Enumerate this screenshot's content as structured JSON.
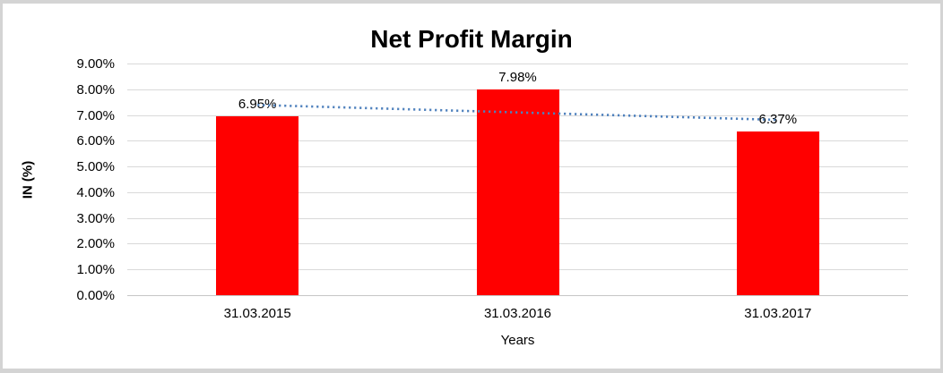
{
  "chart_data": {
    "type": "bar",
    "title": "Net Profit Margin",
    "categories": [
      "31.03.2015",
      "31.03.2016",
      "31.03.2017"
    ],
    "values": [
      6.95,
      7.98,
      6.37
    ],
    "data_labels": [
      "6.95%",
      "7.98%",
      "6.37%"
    ],
    "xlabel": "Years",
    "ylabel": "IN (%)",
    "ylim": [
      0,
      9
    ],
    "ytick_labels": [
      "0.00%",
      "1.00%",
      "2.00%",
      "3.00%",
      "4.00%",
      "5.00%",
      "6.00%",
      "7.00%",
      "8.00%",
      "9.00%"
    ],
    "grid": true,
    "legend": false,
    "bar_color": "#ff0000",
    "gridline_color": "#d9d9d9",
    "trendline": {
      "type": "linear",
      "style": "dotted",
      "color": "#4f81bd",
      "fit_values_pct": [
        7.39,
        7.1,
        6.81
      ]
    }
  }
}
